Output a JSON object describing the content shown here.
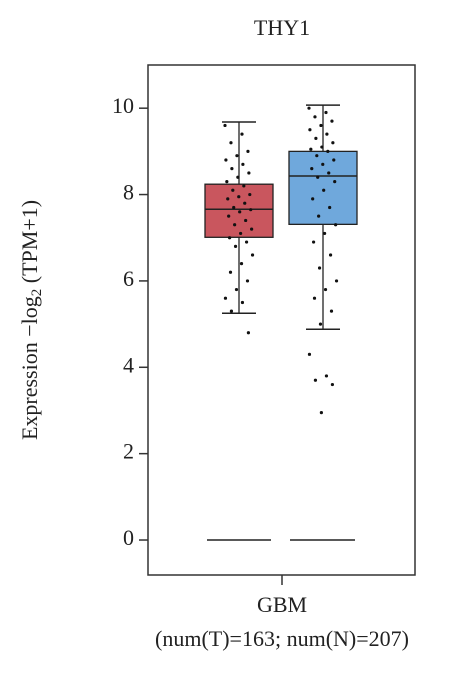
{
  "chart_data": {
    "type": "box",
    "title": "THY1",
    "ylabel_parts": [
      "Expression −log",
      "2",
      " (TPM+1)"
    ],
    "categories": [
      "GBM"
    ],
    "subtitle": "(num(T)=163; num(N)=207)",
    "ylim": [
      -0.81,
      11.0
    ],
    "yticks": [
      0,
      2,
      4,
      6,
      8,
      10
    ],
    "series": [
      {
        "color": "#c9565e",
        "whisker_low": 5.25,
        "q1": 7.01,
        "median": 7.66,
        "q3": 8.24,
        "whisker_high": 9.68,
        "points": [
          9.6,
          9.4,
          9.2,
          9.0,
          8.9,
          8.8,
          8.7,
          8.6,
          8.5,
          8.4,
          8.3,
          8.2,
          8.1,
          8.0,
          7.95,
          7.9,
          7.8,
          7.7,
          7.65,
          7.6,
          7.5,
          7.4,
          7.3,
          7.2,
          7.1,
          7.0,
          6.9,
          6.8,
          6.6,
          6.4,
          6.2,
          6.0,
          5.8,
          5.6,
          5.5,
          5.3,
          4.8
        ]
      },
      {
        "color": "#6fa8dc",
        "whisker_low": 4.88,
        "q1": 7.31,
        "median": 8.43,
        "q3": 9.0,
        "whisker_high": 10.07,
        "points": [
          10.0,
          9.9,
          9.8,
          9.7,
          9.6,
          9.5,
          9.4,
          9.3,
          9.2,
          9.1,
          9.05,
          9.0,
          8.9,
          8.8,
          8.7,
          8.6,
          8.5,
          8.4,
          8.3,
          8.1,
          7.9,
          7.7,
          7.5,
          7.3,
          7.1,
          6.9,
          6.6,
          6.3,
          6.0,
          5.8,
          5.6,
          5.3,
          5.0,
          4.3,
          3.8,
          3.7,
          3.6,
          2.95
        ]
      }
    ]
  }
}
